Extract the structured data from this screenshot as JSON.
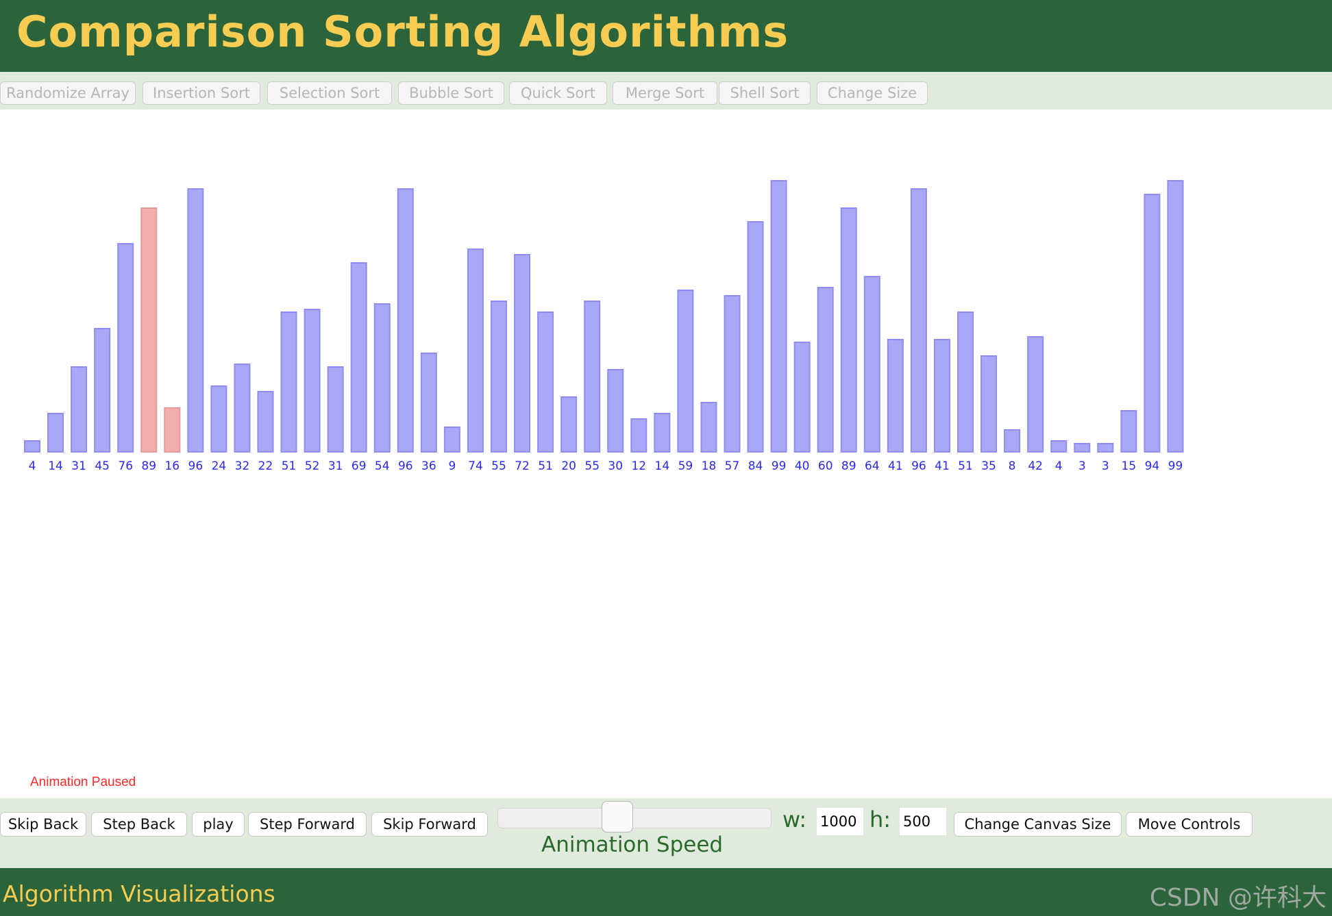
{
  "header": {
    "title": "Comparison Sorting Algorithms"
  },
  "algorithm_bar": {
    "buttons": [
      "Randomize Array",
      "Insertion Sort",
      "Selection Sort",
      "Bubble Sort",
      "Quick Sort",
      "Merge Sort",
      "Shell Sort",
      "Change Size"
    ]
  },
  "chart_data": {
    "type": "bar",
    "values": [
      4,
      14,
      31,
      45,
      76,
      89,
      16,
      96,
      24,
      32,
      22,
      51,
      52,
      31,
      69,
      54,
      96,
      36,
      9,
      74,
      55,
      72,
      51,
      20,
      55,
      30,
      12,
      14,
      59,
      18,
      57,
      84,
      99,
      40,
      60,
      89,
      64,
      41,
      96,
      41,
      51,
      35,
      8,
      42,
      4,
      3,
      3,
      15,
      94,
      99
    ],
    "highlighted_indices": [
      5,
      6
    ],
    "bar_color": "#a8a8f8",
    "bar_border_color": "#8d8df2",
    "highlight_color": "#f2adad",
    "highlight_border_color": "#e89898",
    "label_color": "#2a2af0",
    "ylim": [
      0,
      100
    ],
    "grid": false
  },
  "status": {
    "text": "Animation Paused",
    "color": "#ff2a2a"
  },
  "controls": {
    "skip_back": "Skip Back",
    "step_back": "Step Back",
    "play": "play",
    "step_forward": "Step Forward",
    "skip_forward": "Skip Forward",
    "speed_label": "Animation Speed",
    "width_label": "w:",
    "width_value": "1000",
    "height_label": "h:",
    "height_value": "500",
    "change_canvas_size": "Change Canvas Size",
    "move_controls": "Move Controls"
  },
  "footer": {
    "title": "Algorithm Visualizations",
    "watermark": "CSDN @许科大"
  }
}
